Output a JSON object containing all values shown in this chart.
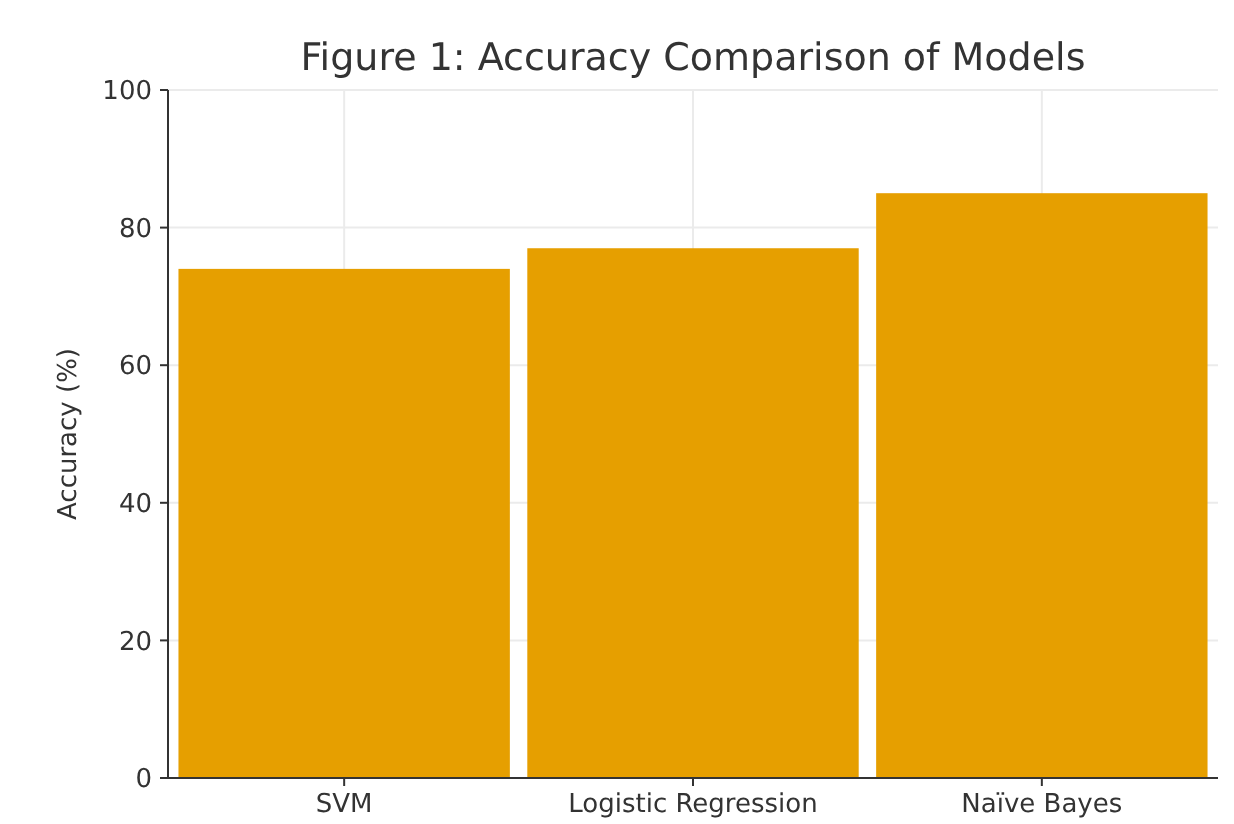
{
  "chart_data": {
    "type": "bar",
    "title": "Figure 1: Accuracy Comparison of Models",
    "ylabel": "Accuracy (%)",
    "categories": [
      "SVM",
      "Logistic Regression",
      "Naïve Bayes"
    ],
    "values": [
      74,
      77,
      85
    ],
    "color": "#e69f00",
    "ylim": [
      0,
      100
    ],
    "yticks": [
      0,
      20,
      40,
      60,
      80,
      100
    ],
    "grid": true
  }
}
